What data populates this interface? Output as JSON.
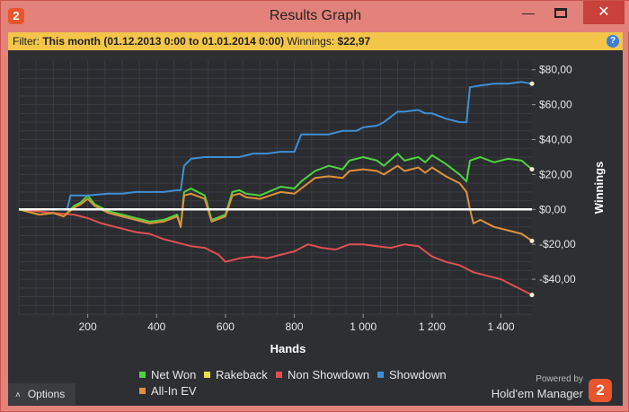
{
  "window": {
    "title": "Results Graph",
    "app_icon_text": "2",
    "minimize_glyph": "—",
    "close_glyph": "✕"
  },
  "filter": {
    "label": "Filter:",
    "value": "This month (01.12.2013 0:00 to 01.01.2014 0:00)",
    "winnings_label": "Winnings:",
    "winnings_value": "$22,97",
    "help_glyph": "?"
  },
  "chart_data": {
    "type": "line",
    "xlabel": "Hands",
    "ylabel": "Winnings",
    "xlim": [
      0,
      1490
    ],
    "ylim": [
      -60,
      85
    ],
    "x_ticks": [
      200,
      400,
      600,
      800,
      1000,
      1200,
      1400
    ],
    "x_tick_labels": [
      "200",
      "400",
      "600",
      "800",
      "1 000",
      "1 200",
      "1 400"
    ],
    "y_ticks": [
      80,
      60,
      40,
      20,
      0,
      -20,
      -40
    ],
    "y_tick_labels": [
      "$80,00",
      "$60,00",
      "$40,00",
      "$20,00",
      "$0,00",
      "-$20,00",
      "-$40,00"
    ],
    "grid": true,
    "zero_line": true,
    "series": [
      {
        "name": "Net Won",
        "color": "#4ed43f",
        "x": [
          0,
          60,
          100,
          130,
          160,
          180,
          200,
          220,
          260,
          300,
          340,
          380,
          420,
          460,
          470,
          480,
          500,
          540,
          560,
          600,
          620,
          640,
          660,
          700,
          760,
          800,
          820,
          860,
          900,
          940,
          960,
          1000,
          1040,
          1060,
          1100,
          1120,
          1160,
          1180,
          1200,
          1240,
          1280,
          1300,
          1310,
          1340,
          1380,
          1420,
          1460,
          1490
        ],
        "y": [
          0,
          -3,
          -2,
          -4,
          2,
          4,
          8,
          3,
          -1,
          -3,
          -5,
          -7,
          -6,
          -3,
          -10,
          10,
          12,
          8,
          -6,
          -3,
          10,
          11,
          9,
          8,
          13,
          12,
          16,
          22,
          25,
          23,
          28,
          30,
          28,
          25,
          32,
          28,
          30,
          27,
          31,
          26,
          20,
          16,
          28,
          30,
          27,
          29,
          28,
          23
        ]
      },
      {
        "name": "Rakeback",
        "color": "#e8e04a",
        "x": [],
        "y": []
      },
      {
        "name": "Non Showdown",
        "color": "#e05050",
        "x": [
          0,
          100,
          160,
          200,
          240,
          280,
          340,
          380,
          420,
          460,
          500,
          540,
          580,
          600,
          640,
          680,
          720,
          760,
          800,
          840,
          880,
          920,
          960,
          1000,
          1040,
          1080,
          1120,
          1160,
          1200,
          1240,
          1280,
          1320,
          1360,
          1400,
          1440,
          1490
        ],
        "y": [
          0,
          -2,
          -3,
          -5,
          -8,
          -10,
          -13,
          -14,
          -17,
          -19,
          -21,
          -22,
          -26,
          -30,
          -28,
          -27,
          -28,
          -26,
          -24,
          -20,
          -22,
          -23,
          -20,
          -20,
          -21,
          -22,
          -20,
          -21,
          -27,
          -30,
          -32,
          -36,
          -38,
          -40,
          -44,
          -49
        ]
      },
      {
        "name": "Showdown",
        "color": "#3f8fd4",
        "x": [
          0,
          140,
          150,
          200,
          260,
          300,
          340,
          380,
          420,
          460,
          470,
          480,
          500,
          540,
          560,
          600,
          640,
          680,
          720,
          760,
          800,
          820,
          860,
          900,
          940,
          980,
          1000,
          1040,
          1060,
          1100,
          1120,
          1160,
          1180,
          1200,
          1240,
          1280,
          1300,
          1310,
          1340,
          1380,
          1420,
          1460,
          1490
        ],
        "y": [
          0,
          0,
          8,
          8,
          9,
          9,
          10,
          10,
          10,
          11,
          11,
          25,
          29,
          30,
          30,
          30,
          30,
          32,
          32,
          33,
          33,
          43,
          43,
          43,
          45,
          45,
          47,
          48,
          50,
          56,
          56,
          57,
          55,
          55,
          52,
          50,
          50,
          70,
          71,
          72,
          72,
          73,
          72
        ]
      },
      {
        "name": "All-In EV",
        "color": "#e0913a",
        "x": [
          0,
          60,
          100,
          130,
          160,
          180,
          200,
          220,
          260,
          300,
          340,
          380,
          420,
          460,
          470,
          480,
          500,
          540,
          560,
          600,
          620,
          640,
          660,
          700,
          760,
          800,
          820,
          860,
          900,
          940,
          960,
          1000,
          1040,
          1060,
          1100,
          1120,
          1160,
          1180,
          1200,
          1240,
          1280,
          1300,
          1310,
          1320,
          1340,
          1380,
          1420,
          1460,
          1490
        ],
        "y": [
          0,
          -3,
          -2,
          -4,
          1,
          3,
          6,
          2,
          -2,
          -4,
          -6,
          -8,
          -7,
          -4,
          -10,
          8,
          9,
          6,
          -7,
          -4,
          8,
          9,
          7,
          6,
          10,
          9,
          12,
          18,
          19,
          18,
          22,
          23,
          22,
          20,
          25,
          22,
          24,
          21,
          24,
          19,
          15,
          10,
          0,
          -8,
          -6,
          -10,
          -12,
          -14,
          -18
        ]
      }
    ],
    "end_markers": true
  },
  "legend": {
    "items": [
      {
        "label": "Net Won",
        "color": "#4ed43f"
      },
      {
        "label": "Rakeback",
        "color": "#e8e04a"
      },
      {
        "label": "Non Showdown",
        "color": "#e05050"
      },
      {
        "label": "Showdown",
        "color": "#3f8fd4"
      },
      {
        "label": "All-In EV",
        "color": "#e0913a"
      }
    ]
  },
  "footer": {
    "options_label": "Options",
    "powered_by": "Powered by",
    "brand": "Hold'em Manager",
    "brand_logo_text": "2"
  }
}
